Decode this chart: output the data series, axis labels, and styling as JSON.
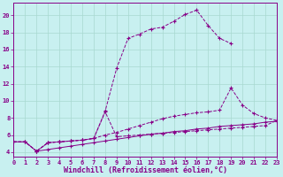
{
  "background_color": "#c8f0f0",
  "grid_color": "#a8d8d0",
  "line_color": "#880088",
  "xlabel": "Windchill (Refroidissement éolien,°C)",
  "xlabel_fontsize": 6,
  "tick_fontsize": 5,
  "xlim": [
    0,
    23
  ],
  "ylim": [
    3.5,
    21.5
  ],
  "yticks": [
    4,
    6,
    8,
    10,
    12,
    14,
    16,
    18,
    20
  ],
  "xticks": [
    0,
    1,
    2,
    3,
    4,
    5,
    6,
    7,
    8,
    9,
    10,
    11,
    12,
    13,
    14,
    15,
    16,
    17,
    18,
    19,
    20,
    21,
    22,
    23
  ],
  "curves": [
    {
      "x": [
        0,
        1,
        2,
        3,
        4,
        5,
        6,
        7,
        8,
        9,
        10,
        11,
        12,
        13,
        14,
        15,
        16,
        17,
        18,
        19
      ],
      "y": [
        5.2,
        5.2,
        4.1,
        5.1,
        5.2,
        5.3,
        5.4,
        5.6,
        8.8,
        13.8,
        17.3,
        17.8,
        18.4,
        18.6,
        19.3,
        20.1,
        20.6,
        18.8,
        17.3,
        16.7
      ],
      "linestyle": "--"
    },
    {
      "x": [
        0,
        1,
        2,
        3,
        4,
        5,
        6,
        7,
        8,
        9,
        10,
        11,
        12,
        13,
        14,
        15,
        16,
        17,
        18,
        19,
        20,
        21,
        22,
        23
      ],
      "y": [
        5.2,
        5.2,
        4.1,
        5.1,
        5.2,
        5.3,
        5.4,
        5.6,
        6.0,
        6.3,
        6.7,
        7.1,
        7.5,
        7.9,
        8.2,
        8.4,
        8.6,
        8.7,
        8.9,
        11.5,
        9.5,
        8.5,
        8.0,
        7.7
      ],
      "linestyle": "--"
    },
    {
      "x": [
        0,
        1,
        2,
        3,
        4,
        5,
        6,
        7,
        8,
        9,
        10,
        11,
        12,
        13,
        14,
        15,
        16,
        17,
        18,
        19,
        20,
        21,
        22,
        23
      ],
      "y": [
        5.2,
        5.2,
        4.1,
        4.3,
        4.5,
        4.7,
        4.9,
        5.1,
        5.3,
        5.5,
        5.7,
        5.9,
        6.1,
        6.2,
        6.4,
        6.5,
        6.7,
        6.8,
        7.0,
        7.1,
        7.2,
        7.3,
        7.5,
        7.6
      ],
      "linestyle": "-"
    },
    {
      "x": [
        2,
        3,
        4,
        5,
        6,
        7,
        8,
        9,
        10,
        11,
        12,
        13,
        14,
        15,
        16,
        17,
        18,
        19,
        20,
        21,
        22,
        23
      ],
      "y": [
        4.1,
        5.1,
        5.2,
        5.3,
        5.4,
        5.6,
        8.7,
        5.8,
        5.9,
        6.0,
        6.1,
        6.2,
        6.3,
        6.4,
        6.5,
        6.6,
        6.7,
        6.8,
        6.9,
        7.0,
        7.1,
        7.7
      ],
      "linestyle": "--"
    }
  ]
}
